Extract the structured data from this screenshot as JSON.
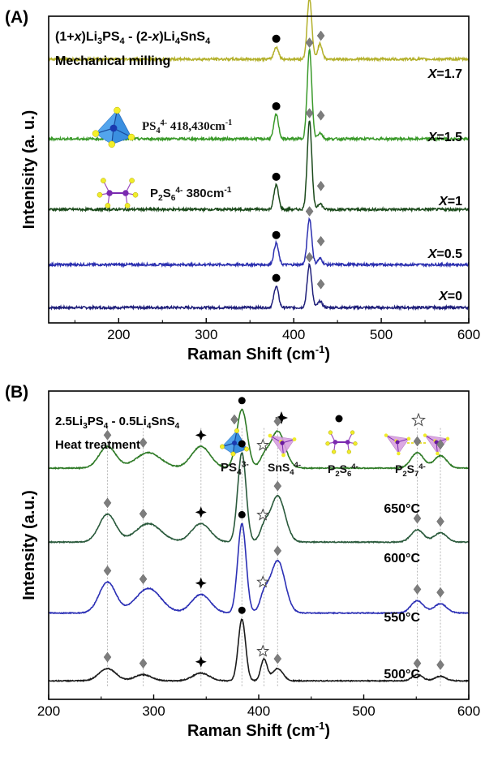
{
  "chart_data": [
    {
      "panel_label": "(A)",
      "type": "line",
      "title_lines": [
        "(1+x)Li3PS4 - (2-x)Li4SnS4",
        "Mechanical milling"
      ],
      "xlabel": "Raman Shift (cm-1)",
      "ylabel": "Intenisity (a. u.)",
      "xlim": [
        120,
        600
      ],
      "xticks": [
        200,
        300,
        400,
        500,
        600
      ],
      "stacked": true,
      "series": [
        {
          "name": "X=0",
          "color": "#1f1f7a",
          "baseline_level": 0.05,
          "peaks": [
            {
              "x": 380,
              "h": 0.07
            },
            {
              "x": 418,
              "h": 0.14
            },
            {
              "x": 430,
              "h": 0.02
            }
          ]
        },
        {
          "name": "X=0.5",
          "color": "#2b2fb0",
          "baseline_level": 0.19,
          "peaks": [
            {
              "x": 380,
              "h": 0.07
            },
            {
              "x": 418,
              "h": 0.15
            },
            {
              "x": 430,
              "h": 0.02
            }
          ]
        },
        {
          "name": "X=1",
          "color": "#1b4a1b",
          "baseline_level": 0.37,
          "peaks": [
            {
              "x": 380,
              "h": 0.08
            },
            {
              "x": 418,
              "h": 0.29
            },
            {
              "x": 430,
              "h": 0.02
            }
          ]
        },
        {
          "name": "X=1.5",
          "color": "#3a9a2a",
          "baseline_level": 0.6,
          "peaks": [
            {
              "x": 380,
              "h": 0.08
            },
            {
              "x": 418,
              "h": 0.29
            },
            {
              "x": 430,
              "h": 0.02
            }
          ]
        },
        {
          "name": "X=1.7",
          "color": "#b3b02a",
          "baseline_level": 0.86,
          "peaks": [
            {
              "x": 380,
              "h": 0.04
            },
            {
              "x": 418,
              "h": 0.2
            },
            {
              "x": 430,
              "h": 0.05
            }
          ]
        }
      ],
      "annotations": [
        {
          "label_main": "PS",
          "label_sub": "4",
          "label_sup": "4-",
          "label_rest": " 418,430cm",
          "label_rest_sup": "-1",
          "icon": "tetrahedron-icon",
          "marker": "diamond"
        },
        {
          "label_main": "P",
          "label_sub": "2",
          "label_main2": "S",
          "label_sub2": "6",
          "label_sup": "4-",
          "label_rest": " 380cm",
          "label_rest_sup": "-1",
          "icon": "dimer-icon",
          "marker": "circle"
        }
      ]
    },
    {
      "panel_label": "(B)",
      "type": "line",
      "title_lines": [
        "2.5Li3PS4 - 0.5Li4SnS4",
        "Heat treatment"
      ],
      "xlabel": "Raman Shift (cm-1)",
      "ylabel": "Intensity (a.u.)",
      "xlim": [
        200,
        600
      ],
      "xticks": [
        200,
        300,
        400,
        500,
        600
      ],
      "stacked": true,
      "marker_lines_x": [
        256,
        290,
        345,
        384,
        405,
        418,
        551,
        573
      ],
      "series": [
        {
          "name": "500°C",
          "color": "#1a1a1a",
          "baseline_level": 0.06,
          "peaks": [
            {
              "x": 256,
              "h": 0.04,
              "w": 8
            },
            {
              "x": 290,
              "h": 0.02,
              "w": 8
            },
            {
              "x": 345,
              "h": 0.025,
              "w": 8
            },
            {
              "x": 384,
              "h": 0.2,
              "w": 3.5
            },
            {
              "x": 405,
              "h": 0.07,
              "w": 3
            },
            {
              "x": 418,
              "h": 0.04,
              "w": 5
            },
            {
              "x": 551,
              "h": 0.02,
              "w": 5
            },
            {
              "x": 573,
              "h": 0.015,
              "w": 5
            }
          ]
        },
        {
          "name": "550°C",
          "color": "#2b2fb5",
          "baseline_level": 0.28,
          "peaks": [
            {
              "x": 256,
              "h": 0.1,
              "w": 8
            },
            {
              "x": 295,
              "h": 0.08,
              "w": 12
            },
            {
              "x": 345,
              "h": 0.06,
              "w": 9
            },
            {
              "x": 384,
              "h": 0.29,
              "w": 4
            },
            {
              "x": 405,
              "h": 0.05,
              "w": 4
            },
            {
              "x": 418,
              "h": 0.17,
              "w": 7
            },
            {
              "x": 551,
              "h": 0.04,
              "w": 6
            },
            {
              "x": 573,
              "h": 0.03,
              "w": 6
            }
          ]
        },
        {
          "name": "600°C",
          "color": "#2a5a3c",
          "baseline_level": 0.51,
          "peaks": [
            {
              "x": 256,
              "h": 0.09,
              "w": 8
            },
            {
              "x": 295,
              "h": 0.06,
              "w": 12
            },
            {
              "x": 345,
              "h": 0.06,
              "w": 9
            },
            {
              "x": 384,
              "h": 0.29,
              "w": 4
            },
            {
              "x": 405,
              "h": 0.04,
              "w": 4
            },
            {
              "x": 418,
              "h": 0.15,
              "w": 7
            },
            {
              "x": 551,
              "h": 0.04,
              "w": 6
            },
            {
              "x": 573,
              "h": 0.03,
              "w": 6
            }
          ]
        },
        {
          "name": "650°C",
          "color": "#2e7a26",
          "baseline_level": 0.75,
          "peaks": [
            {
              "x": 256,
              "h": 0.07,
              "w": 8
            },
            {
              "x": 295,
              "h": 0.05,
              "w": 12
            },
            {
              "x": 345,
              "h": 0.07,
              "w": 9
            },
            {
              "x": 384,
              "h": 0.19,
              "w": 5
            },
            {
              "x": 405,
              "h": 0.03,
              "w": 4
            },
            {
              "x": 418,
              "h": 0.12,
              "w": 7
            },
            {
              "x": 551,
              "h": 0.05,
              "w": 6
            },
            {
              "x": 573,
              "h": 0.04,
              "w": 6
            }
          ]
        }
      ],
      "legend_species": [
        {
          "label_main": "PS",
          "label_sub": "4",
          "label_sup": "3-",
          "marker": "diamond",
          "icon": "tetrahedron-icon"
        },
        {
          "label_main": "SnS",
          "label_sub": "4",
          "label_sup": "4-",
          "marker": "star4",
          "icon": "sns4-icon"
        },
        {
          "label_main": "P",
          "label_sub": "2",
          "label_main2": "S",
          "label_sub2": "6",
          "label_sup": "4-",
          "marker": "circle",
          "icon": "p2s6-icon"
        },
        {
          "label_main": "P",
          "label_sub": "2",
          "label_main2": "S",
          "label_sub2": "7",
          "label_sup": "4-",
          "marker": "star5",
          "icon": "p2s7-icon"
        }
      ]
    }
  ]
}
